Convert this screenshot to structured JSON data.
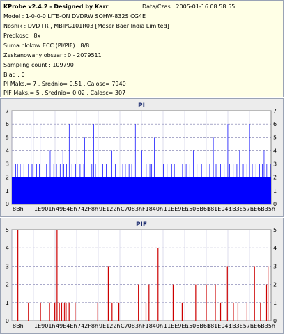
{
  "header": {
    "title": "KProbe v2.4.2 - Designed by Karr",
    "date_label": "Data/Czas : 2005-01-16 08:58:55",
    "lines": [
      "Model : 1-0-0-0 LITE-ON DVDRW SOHW-832S  CG4E",
      "Nosnik : DVD+R , MBIPG101R03 [Moser Baer India Limited]",
      "Predkosc : 8x",
      "Suma blokow ECC (PI/PIF) : 8/8",
      "Zeskanowany obszar : 0 - 2079511",
      "Sampling count : 109790",
      "Blad : 0",
      "PI Maks.= 7 , Srednio= 0,51 , Calosc= 7940",
      "PIF Maks.= 5 , Srednio= 0,02 , Calosc= 307"
    ]
  },
  "chart_data": [
    {
      "type": "bar",
      "title": "PI",
      "color": "#0000ff",
      "ylim": [
        0,
        7
      ],
      "yticks": [
        0,
        1,
        2,
        3,
        4,
        5,
        6,
        7
      ],
      "xticks": [
        "8Bh",
        "1E901h",
        "49E4Eh",
        "742F8h",
        "9E122h",
        "C7083h",
        "F1840h",
        "11EE9Eh",
        "1506B6h",
        "181E04h",
        "1B3E57h",
        "1E6B35h"
      ],
      "grid": true,
      "base_level": 2,
      "values": [
        2,
        3,
        2,
        2,
        3,
        2,
        3,
        2,
        2,
        3,
        2,
        2,
        2,
        3,
        2,
        2,
        2,
        2,
        3,
        2,
        2,
        6,
        3,
        3,
        2,
        2,
        2,
        3,
        2,
        2,
        3,
        6,
        2,
        2,
        3,
        2,
        2,
        2,
        3,
        2,
        2,
        2,
        4,
        2,
        2,
        2,
        3,
        2,
        2,
        3,
        2,
        2,
        2,
        3,
        2,
        2,
        4,
        3,
        2,
        2,
        3,
        2,
        2,
        6,
        2,
        2,
        3,
        2,
        2,
        2,
        3,
        2,
        2,
        2,
        2,
        3,
        2,
        2,
        2,
        3,
        5,
        2,
        2,
        2,
        3,
        2,
        2,
        2,
        3,
        2,
        6,
        2,
        3,
        2,
        2,
        2,
        2,
        3,
        2,
        2,
        3,
        2,
        2,
        2,
        3,
        2,
        2,
        3,
        2,
        2,
        4,
        2,
        2,
        2,
        3,
        2,
        2,
        3,
        2,
        2,
        2,
        2,
        3,
        2,
        2,
        3,
        2,
        2,
        2,
        3,
        2,
        2,
        3,
        2,
        2,
        2,
        6,
        2,
        2,
        2,
        3,
        2,
        2,
        4,
        2,
        2,
        2,
        2,
        3,
        2,
        2,
        2,
        3,
        2,
        3,
        2,
        2,
        5,
        2,
        2,
        2,
        2,
        2,
        3,
        2,
        2,
        2,
        3,
        2,
        2,
        2,
        3,
        2,
        2,
        2,
        2,
        3,
        2,
        2,
        3,
        2,
        2,
        2,
        3,
        2,
        2,
        2,
        2,
        3,
        2,
        2,
        2,
        3,
        2,
        2,
        2,
        3,
        2,
        2,
        2,
        4,
        2,
        2,
        2,
        3,
        2,
        2,
        2,
        2,
        3,
        2,
        2,
        2,
        2,
        3,
        2,
        2,
        2,
        3,
        2,
        2,
        2,
        5,
        2,
        2,
        3,
        2,
        2,
        2,
        2,
        3,
        2,
        2,
        2,
        3,
        2,
        2,
        2,
        6,
        2,
        3,
        2,
        2,
        2,
        3,
        2,
        2,
        2,
        3,
        2,
        2,
        4,
        2,
        2,
        2,
        3,
        2,
        2,
        2,
        3,
        2,
        2,
        6,
        2,
        2,
        3,
        2,
        2,
        2,
        3,
        2,
        2,
        2,
        3,
        2,
        2,
        3,
        2,
        4,
        2,
        2,
        3,
        2,
        2,
        2,
        3
      ],
      "x_tick_positions": [
        0,
        1,
        2,
        3,
        4,
        5,
        6,
        7,
        8,
        9,
        10,
        11
      ]
    },
    {
      "type": "bar",
      "title": "PIF",
      "color": "#cc0000",
      "ylim": [
        0,
        5
      ],
      "yticks": [
        0,
        1,
        2,
        3,
        4,
        5
      ],
      "xticks": [
        "8Bh",
        "1E901h",
        "49E4Eh",
        "742F8h",
        "9E122h",
        "C7083h",
        "F1840h",
        "11EE9Eh",
        "1506B6h",
        "181E04h",
        "1B3E57h",
        "1E6B35h"
      ],
      "grid": true,
      "spikes": [
        {
          "x": 0.4,
          "v": 5
        },
        {
          "x": 1.1,
          "v": 1
        },
        {
          "x": 1.9,
          "v": 1
        },
        {
          "x": 2.5,
          "v": 1
        },
        {
          "x": 2.85,
          "v": 1
        },
        {
          "x": 3.0,
          "v": 5
        },
        {
          "x": 3.15,
          "v": 1
        },
        {
          "x": 3.3,
          "v": 1
        },
        {
          "x": 3.4,
          "v": 1
        },
        {
          "x": 3.5,
          "v": 1
        },
        {
          "x": 3.6,
          "v": 1
        },
        {
          "x": 3.8,
          "v": 1
        },
        {
          "x": 4.2,
          "v": 1
        },
        {
          "x": 5.7,
          "v": 1
        },
        {
          "x": 6.4,
          "v": 3
        },
        {
          "x": 6.65,
          "v": 1
        },
        {
          "x": 7.1,
          "v": 1
        },
        {
          "x": 8.4,
          "v": 2
        },
        {
          "x": 8.9,
          "v": 1
        },
        {
          "x": 9.1,
          "v": 2
        },
        {
          "x": 9.7,
          "v": 4
        },
        {
          "x": 10.7,
          "v": 2
        },
        {
          "x": 11.3,
          "v": 1
        },
        {
          "x": 12.2,
          "v": 2
        },
        {
          "x": 12.9,
          "v": 2
        },
        {
          "x": 13.5,
          "v": 2
        },
        {
          "x": 13.85,
          "v": 1
        },
        {
          "x": 14.3,
          "v": 3
        },
        {
          "x": 14.7,
          "v": 1
        },
        {
          "x": 15.0,
          "v": 1
        },
        {
          "x": 15.6,
          "v": 1
        },
        {
          "x": 16.1,
          "v": 3
        },
        {
          "x": 16.5,
          "v": 1
        },
        {
          "x": 16.9,
          "v": 2
        },
        {
          "x": 17.0,
          "v": 3
        }
      ],
      "x_tick_positions": [
        0,
        1,
        2,
        3,
        4,
        5,
        6,
        7,
        8,
        9,
        10,
        11
      ]
    }
  ]
}
